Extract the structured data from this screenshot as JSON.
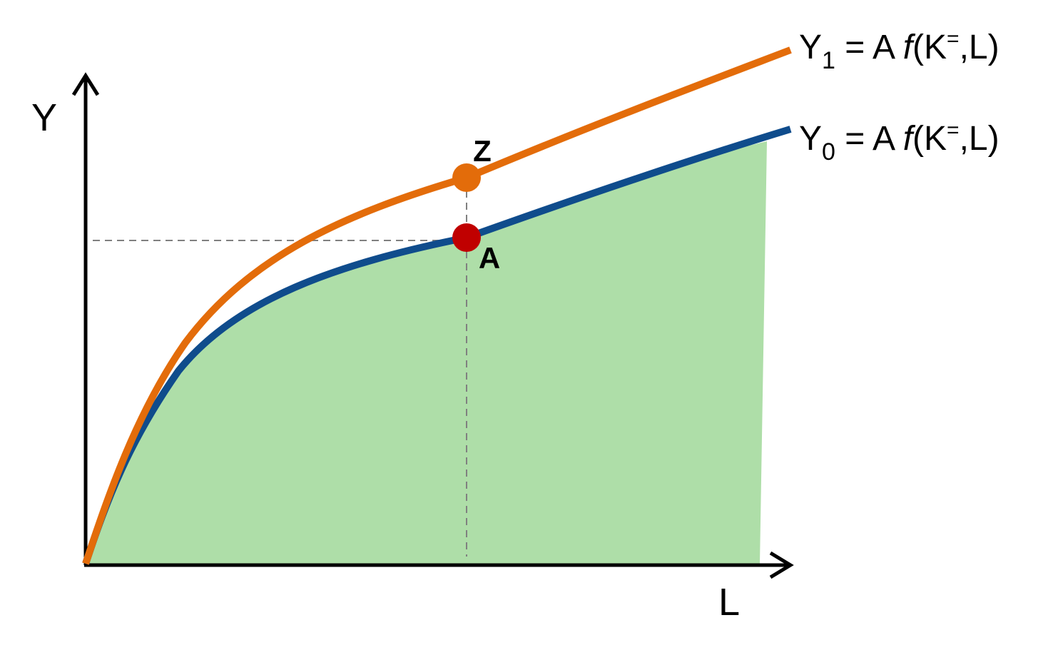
{
  "axes": {
    "y_label": "Y",
    "x_label": "L"
  },
  "curves": [
    {
      "id": "y1",
      "label_main": "Y",
      "label_sub": "1",
      "label_eq": " = A ",
      "label_func": "f",
      "label_args": "(K",
      "label_sup": "=",
      "label_tail": ",L)",
      "color": "#e36c0a"
    },
    {
      "id": "y0",
      "label_main": "Y",
      "label_sub": "0",
      "label_eq": " = A ",
      "label_func": "f",
      "label_args": "(K",
      "label_sup": "=",
      "label_tail": ",L)",
      "color": "#0f4c8c"
    }
  ],
  "points": [
    {
      "label": "Z",
      "color": "#e36c0a"
    },
    {
      "label": "A",
      "color": "#c00000"
    }
  ],
  "colors": {
    "fill": "#aedea8",
    "axis": "#000000",
    "guide": "#808080"
  }
}
